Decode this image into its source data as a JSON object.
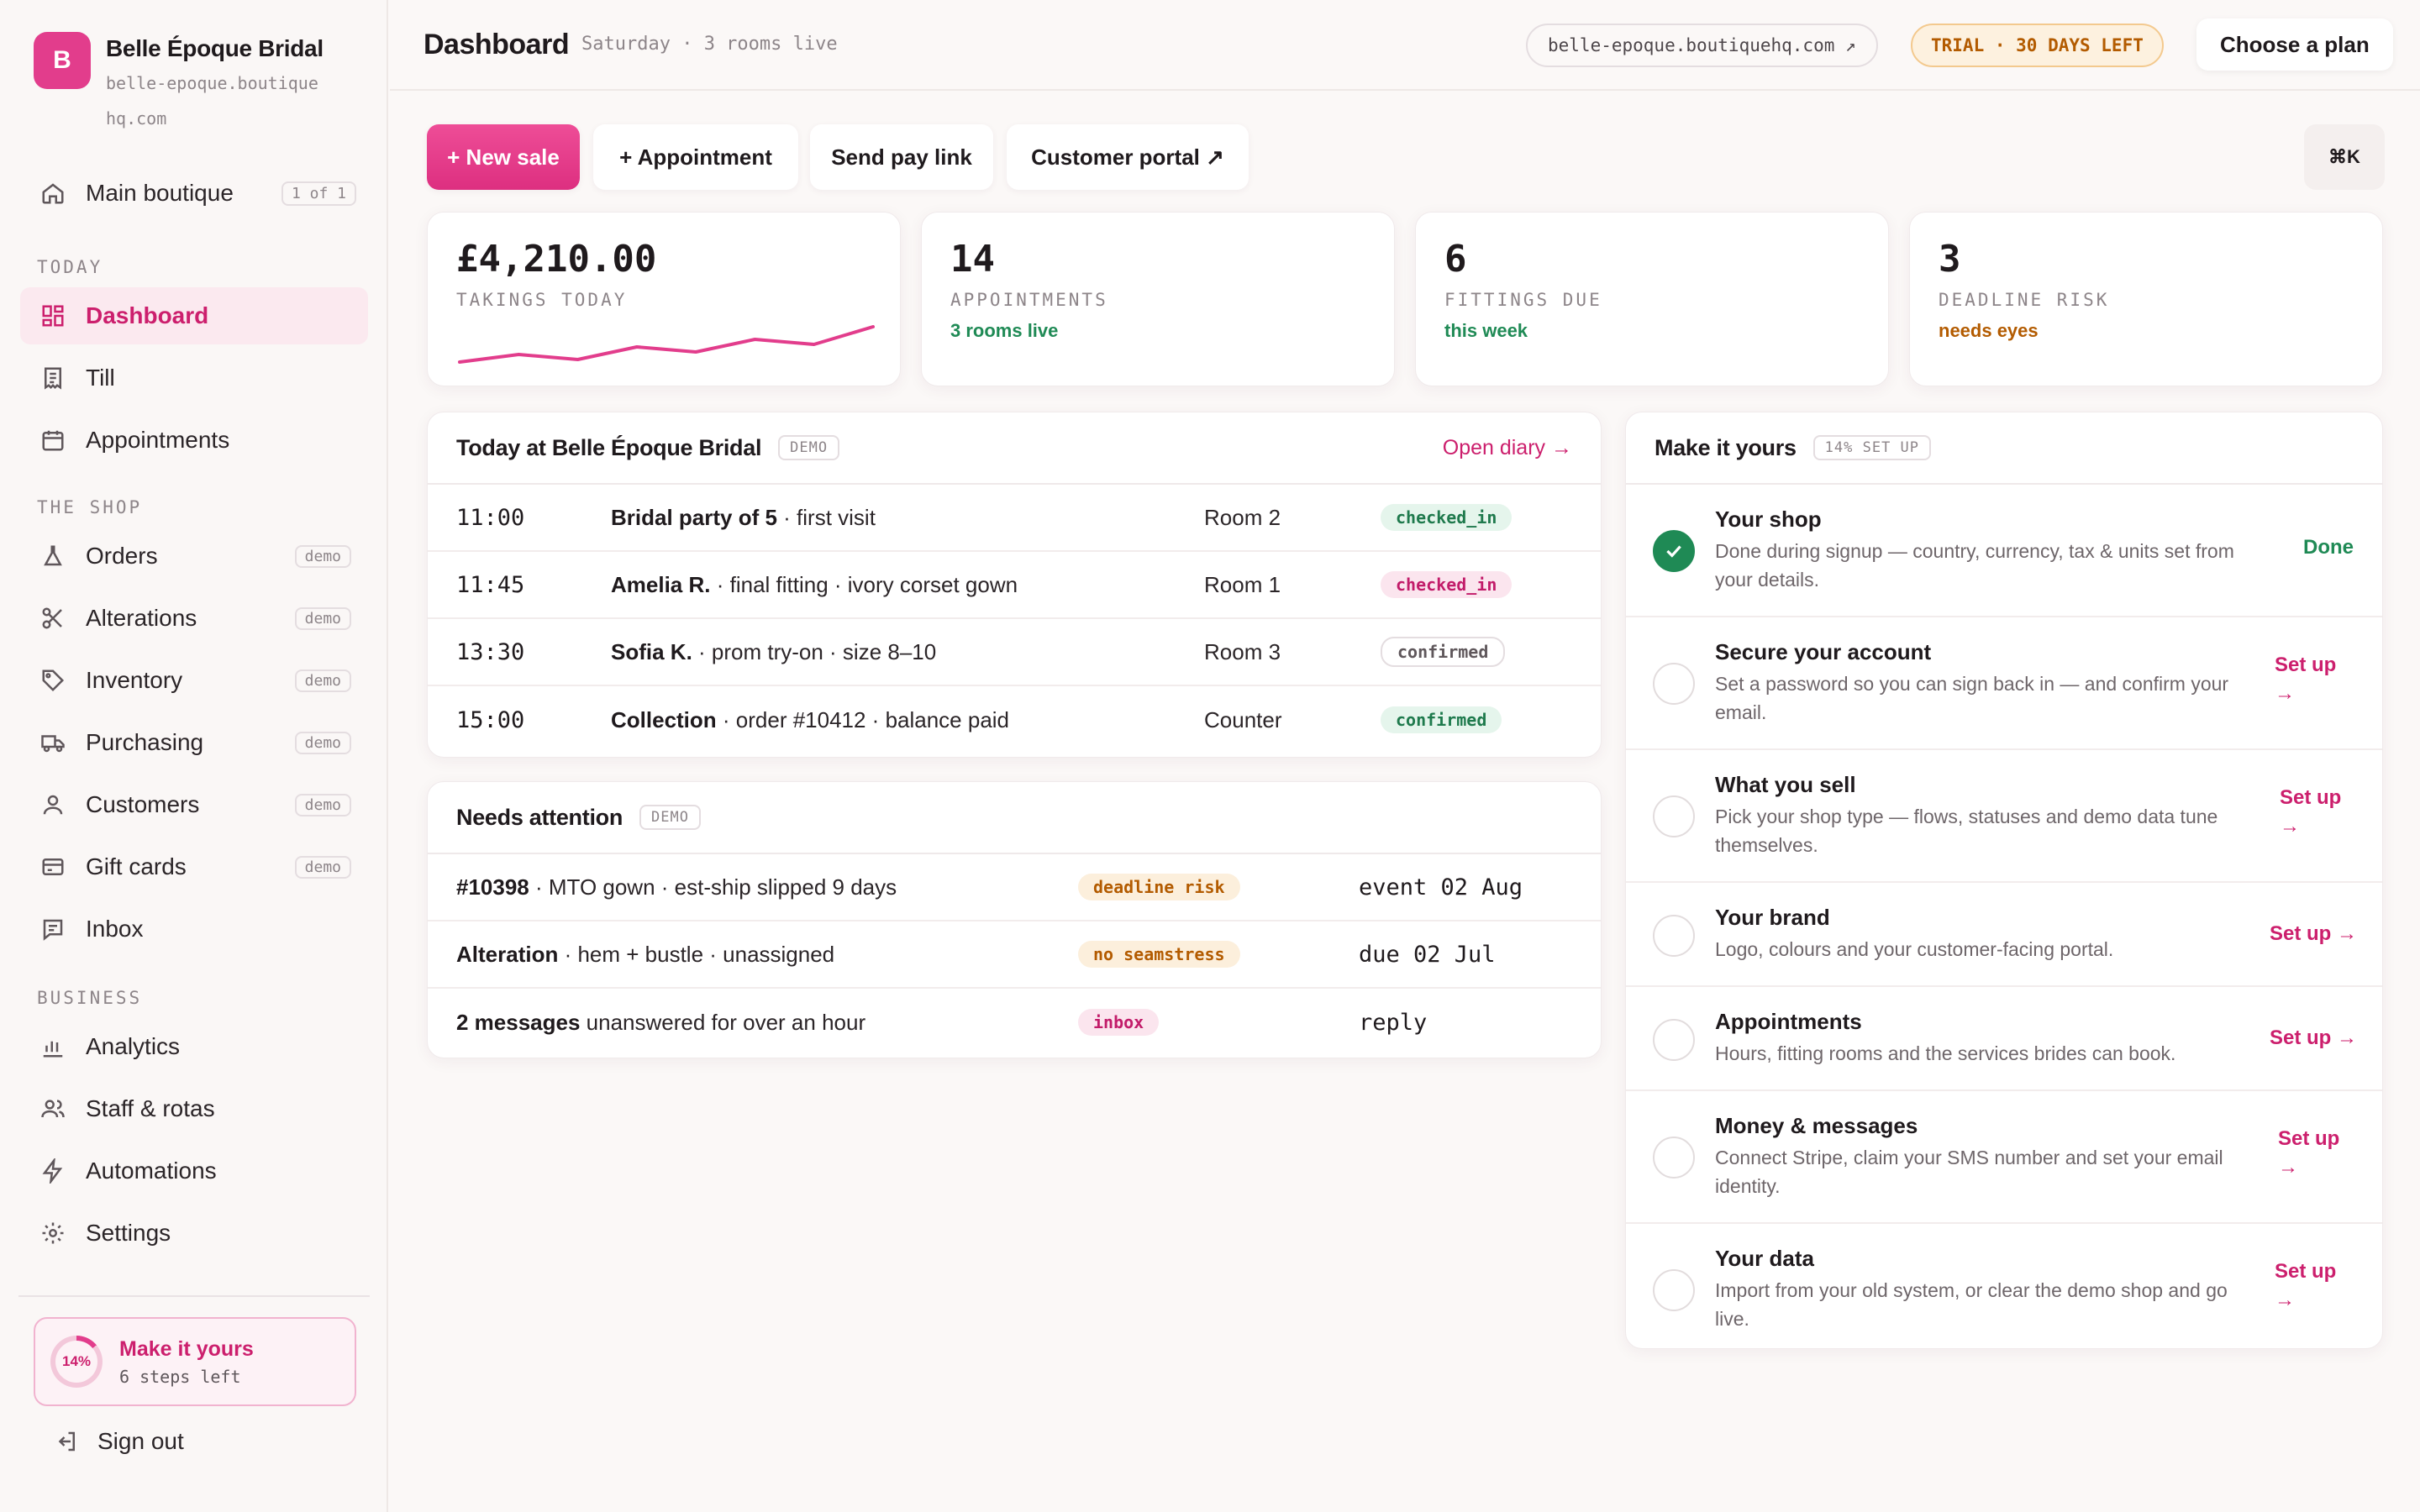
{
  "brand": {
    "initial": "B",
    "name": "Belle Époque Bridal",
    "domain": "belle-epoque.boutiquehq.com"
  },
  "location": {
    "label": "Main boutique",
    "badge": "1 of 1"
  },
  "sidebar": {
    "sections": [
      "TODAY",
      "THE SHOP",
      "BUSINESS"
    ],
    "items": [
      {
        "label": "Dashboard"
      },
      {
        "label": "Till"
      },
      {
        "label": "Appointments"
      },
      {
        "label": "Orders",
        "badge": "demo"
      },
      {
        "label": "Alterations",
        "badge": "demo"
      },
      {
        "label": "Inventory",
        "badge": "demo"
      },
      {
        "label": "Purchasing",
        "badge": "demo"
      },
      {
        "label": "Customers",
        "badge": "demo"
      },
      {
        "label": "Gift cards",
        "badge": "demo"
      },
      {
        "label": "Inbox"
      },
      {
        "label": "Analytics"
      },
      {
        "label": "Staff & rotas"
      },
      {
        "label": "Automations"
      },
      {
        "label": "Settings"
      }
    ],
    "progress": {
      "percent_label": "14%",
      "percent": 14,
      "title": "Make it yours",
      "subtitle": "6 steps left"
    },
    "signout": "Sign out"
  },
  "topbar": {
    "title": "Dashboard",
    "subtitle": "Saturday · 3 rooms live",
    "domain_chip": "belle-epoque.boutiquehq.com ↗",
    "trial_chip": "TRIAL · 30 DAYS LEFT",
    "plan_button": "Choose a plan"
  },
  "actions": {
    "new_sale": "+ New sale",
    "appointment": "+ Appointment",
    "pay_link": "Send pay link",
    "portal": "Customer portal ↗",
    "shortcut": "⌘K"
  },
  "stats": [
    {
      "value": "£4,210.00",
      "label": "TAKINGS TODAY",
      "note": ""
    },
    {
      "value": "14",
      "label": "APPOINTMENTS",
      "note": "3 rooms live"
    },
    {
      "value": "6",
      "label": "FITTINGS DUE",
      "note": "this week"
    },
    {
      "value": "3",
      "label": "DEADLINE RISK",
      "note": "needs eyes"
    }
  ],
  "sparkline": {
    "values": [
      8,
      11,
      9,
      14,
      12,
      17,
      15,
      22
    ]
  },
  "colors": {
    "accent": "#e23d8c",
    "success": "#1f8a55",
    "warning": "#b35b00"
  },
  "today": {
    "title": "Today at Belle Époque Bridal",
    "tag": "DEMO",
    "link": "Open diary →",
    "rows": [
      {
        "time": "11:00",
        "name": "Bridal party of 5",
        "detail": " · first visit",
        "room": "Room 2",
        "status": "checked_in"
      },
      {
        "time": "11:45",
        "name": "Amelia R.",
        "detail": " · final fitting · ivory corset gown",
        "room": "Room 1",
        "status": "checked_in"
      },
      {
        "time": "13:30",
        "name": "Sofia K.",
        "detail": " · prom try-on · size 8–10",
        "room": "Room 3",
        "status": "confirmed"
      },
      {
        "time": "15:00",
        "name": "Collection",
        "detail": " · order #10412 · balance paid",
        "room": "Counter",
        "status": "confirmed"
      }
    ]
  },
  "attention": {
    "title": "Needs attention",
    "tag": "DEMO",
    "rows": [
      {
        "name": "#10398",
        "detail": " · MTO gown · est-ship slipped 9 days",
        "tag": "deadline risk",
        "due": "event 02 Aug"
      },
      {
        "name": "Alteration",
        "detail": " · hem + bustle · unassigned",
        "tag": "no seamstress",
        "due": "due 02 Jul"
      },
      {
        "name": "2 messages",
        "detail": " unanswered for over an hour",
        "tag": "inbox",
        "due": "reply"
      }
    ]
  },
  "setup": {
    "title": "Make it yours",
    "tag": "14% SET UP",
    "steps": [
      {
        "title": "Your shop",
        "desc": "Done during signup — country, currency, tax & units set from your details.",
        "action": "Done",
        "done": true
      },
      {
        "title": "Secure your account",
        "desc": "Set a password so you can sign back in — and confirm your email.",
        "action": "Set up →",
        "done": false
      },
      {
        "title": "What you sell",
        "desc": "Pick your shop type — flows, statuses and demo data tune themselves.",
        "action": "Set up →",
        "done": false
      },
      {
        "title": "Your brand",
        "desc": "Logo, colours and your customer-facing portal.",
        "action": "Set up →",
        "done": false
      },
      {
        "title": "Appointments",
        "desc": "Hours, fitting rooms and the services brides can book.",
        "action": "Set up →",
        "done": false
      },
      {
        "title": "Money & messages",
        "desc": "Connect Stripe, claim your SMS number and set your email identity.",
        "action": "Set up →",
        "done": false
      },
      {
        "title": "Your data",
        "desc": "Import from your old system, or clear the demo shop and go live.",
        "action": "Set up →",
        "done": false
      }
    ]
  }
}
